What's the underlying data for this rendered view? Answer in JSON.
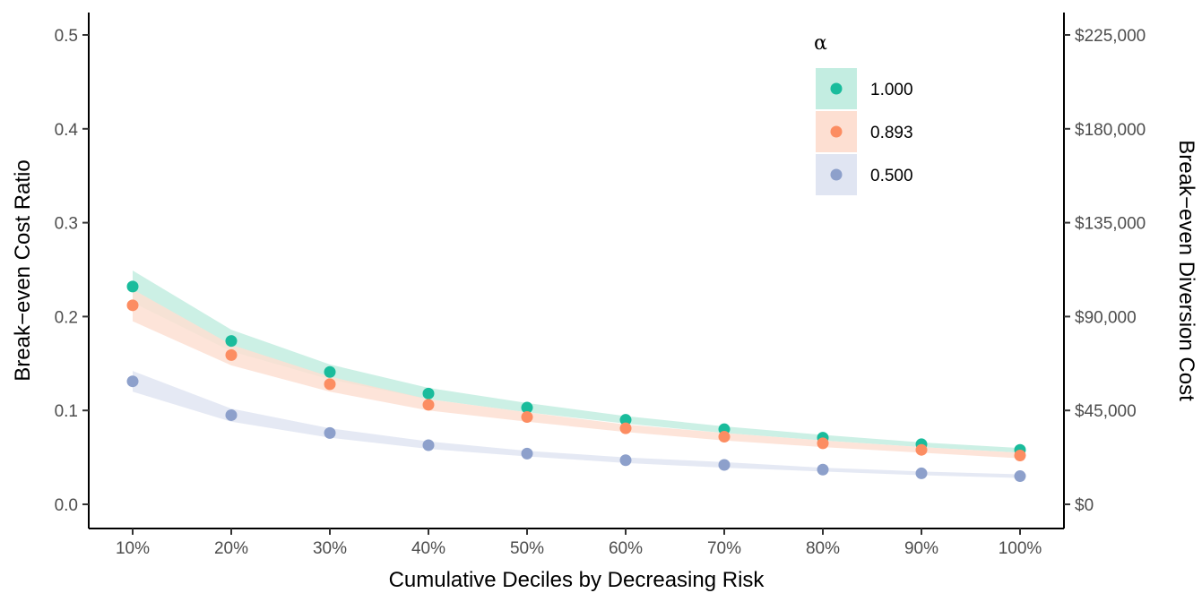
{
  "chart_data": {
    "type": "scatter",
    "xlabel": "Cumulative Deciles by Decreasing Risk",
    "ylabel": "Break−even Cost Ratio",
    "y2label": "Break−even Diversion Cost",
    "categories": [
      "10%",
      "20%",
      "30%",
      "40%",
      "50%",
      "60%",
      "70%",
      "80%",
      "90%",
      "100%"
    ],
    "ylim": [
      0,
      0.5
    ],
    "yticks": [
      0.0,
      0.1,
      0.2,
      0.3,
      0.4,
      0.5
    ],
    "ytick_labels": [
      "0.0",
      "0.1",
      "0.2",
      "0.3",
      "0.4",
      "0.5"
    ],
    "y2ticks": [
      0,
      45000,
      90000,
      135000,
      180000,
      225000
    ],
    "y2tick_labels": [
      "$0",
      "$45,000",
      "$90,000",
      "$135,000",
      "$180,000",
      "$225,000"
    ],
    "y2_per_y": 450000,
    "grid": false,
    "legend": {
      "title": "α",
      "position": "top-right"
    },
    "series": [
      {
        "name": "1.000",
        "color": "#1abc9c",
        "fill": "#c3ede1",
        "values": [
          0.232,
          0.174,
          0.141,
          0.118,
          0.103,
          0.09,
          0.08,
          0.071,
          0.064,
          0.058
        ],
        "lower": [
          0.215,
          0.163,
          0.133,
          0.112,
          0.098,
          0.086,
          0.076,
          0.068,
          0.061,
          0.055
        ],
        "upper": [
          0.249,
          0.186,
          0.149,
          0.124,
          0.108,
          0.094,
          0.083,
          0.074,
          0.066,
          0.06
        ]
      },
      {
        "name": "0.893",
        "color": "#fc8d62",
        "fill": "#fddfd2",
        "values": [
          0.212,
          0.159,
          0.128,
          0.106,
          0.093,
          0.081,
          0.072,
          0.065,
          0.058,
          0.052
        ],
        "lower": [
          0.195,
          0.148,
          0.12,
          0.1,
          0.088,
          0.077,
          0.068,
          0.061,
          0.055,
          0.049
        ],
        "upper": [
          0.229,
          0.17,
          0.136,
          0.112,
          0.098,
          0.085,
          0.076,
          0.068,
          0.061,
          0.055
        ]
      },
      {
        "name": "0.500",
        "color": "#8da0cb",
        "fill": "#e0e5f2",
        "values": [
          0.131,
          0.095,
          0.076,
          0.063,
          0.054,
          0.047,
          0.042,
          0.037,
          0.033,
          0.03
        ],
        "lower": [
          0.12,
          0.088,
          0.071,
          0.059,
          0.051,
          0.044,
          0.039,
          0.035,
          0.031,
          0.028
        ],
        "upper": [
          0.142,
          0.102,
          0.081,
          0.067,
          0.057,
          0.05,
          0.045,
          0.039,
          0.035,
          0.032
        ]
      }
    ]
  }
}
